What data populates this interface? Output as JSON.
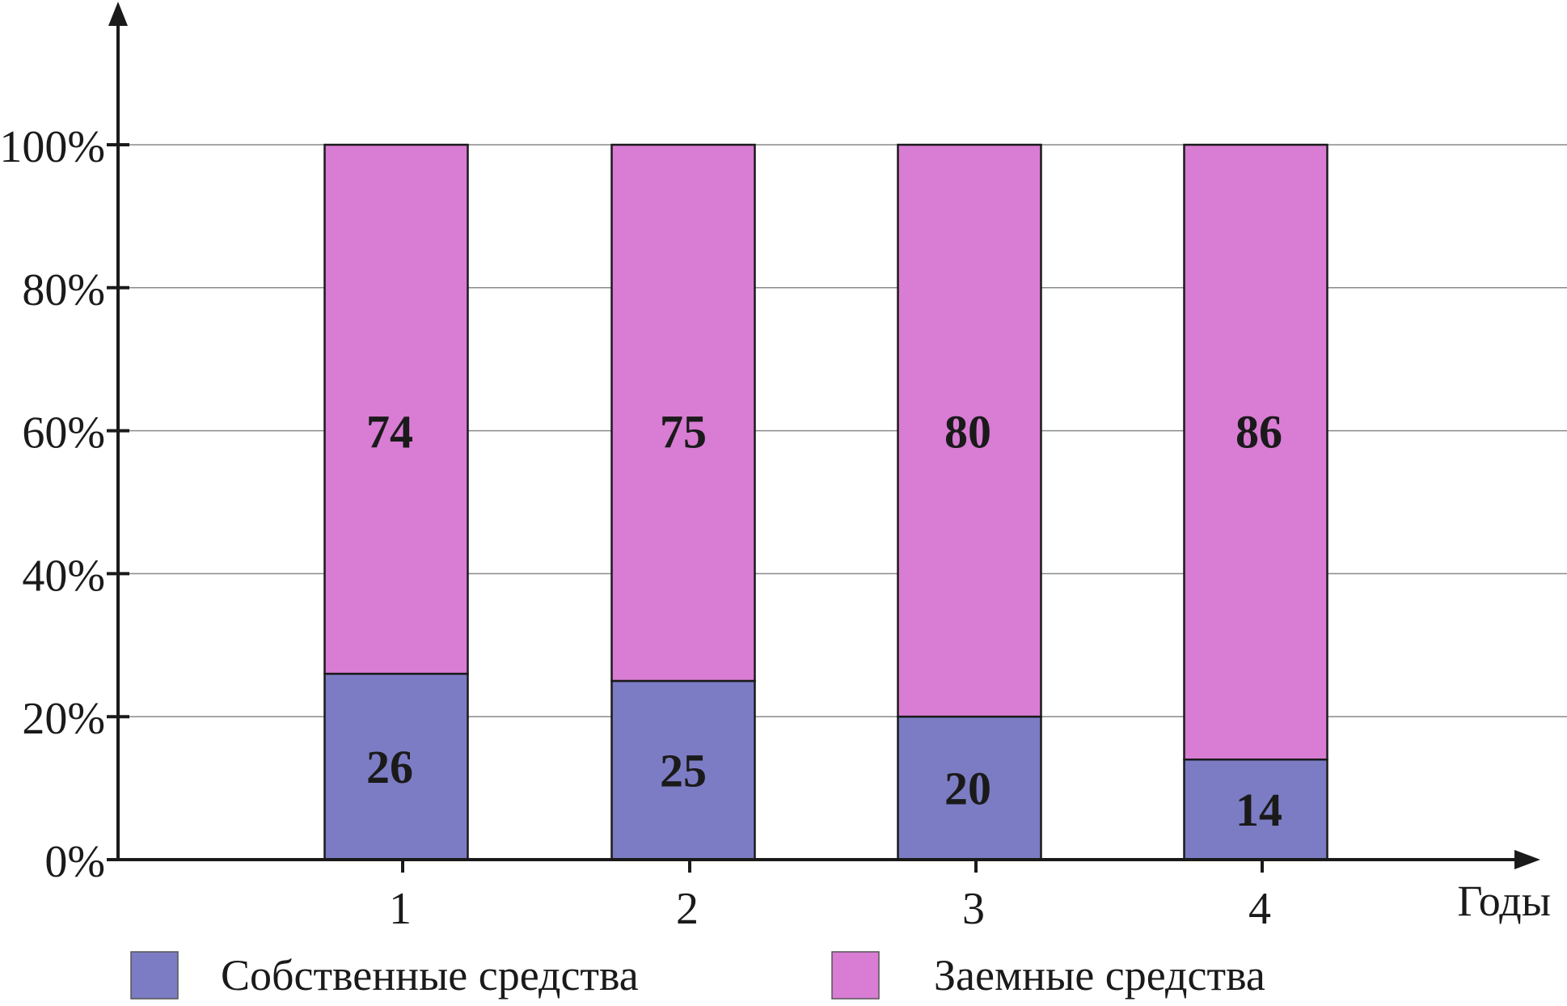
{
  "chart_data": {
    "type": "bar",
    "stacked": true,
    "categories": [
      "1",
      "2",
      "3",
      "4"
    ],
    "series": [
      {
        "name": "Собственные средства",
        "values": [
          26,
          25,
          20,
          14
        ],
        "color": "#7c7cc4"
      },
      {
        "name": "Заемные средства",
        "values": [
          74,
          75,
          80,
          86
        ],
        "color": "#d87cd4"
      }
    ],
    "data_labels": [
      [
        "26",
        "25",
        "20",
        "14"
      ],
      [
        "74",
        "75",
        "80",
        "86"
      ]
    ],
    "yticks": [
      "0%",
      "20%",
      "40%",
      "60%",
      "80%",
      "100%"
    ],
    "ylim": [
      0,
      100
    ],
    "xlabel": "Годы",
    "ylabel": "",
    "grid": true,
    "legend_position": "bottom",
    "colors": {
      "axis": "#1a1a1a",
      "grid": "#8a8a8a",
      "bar_outline": "#1a1a1a"
    }
  }
}
